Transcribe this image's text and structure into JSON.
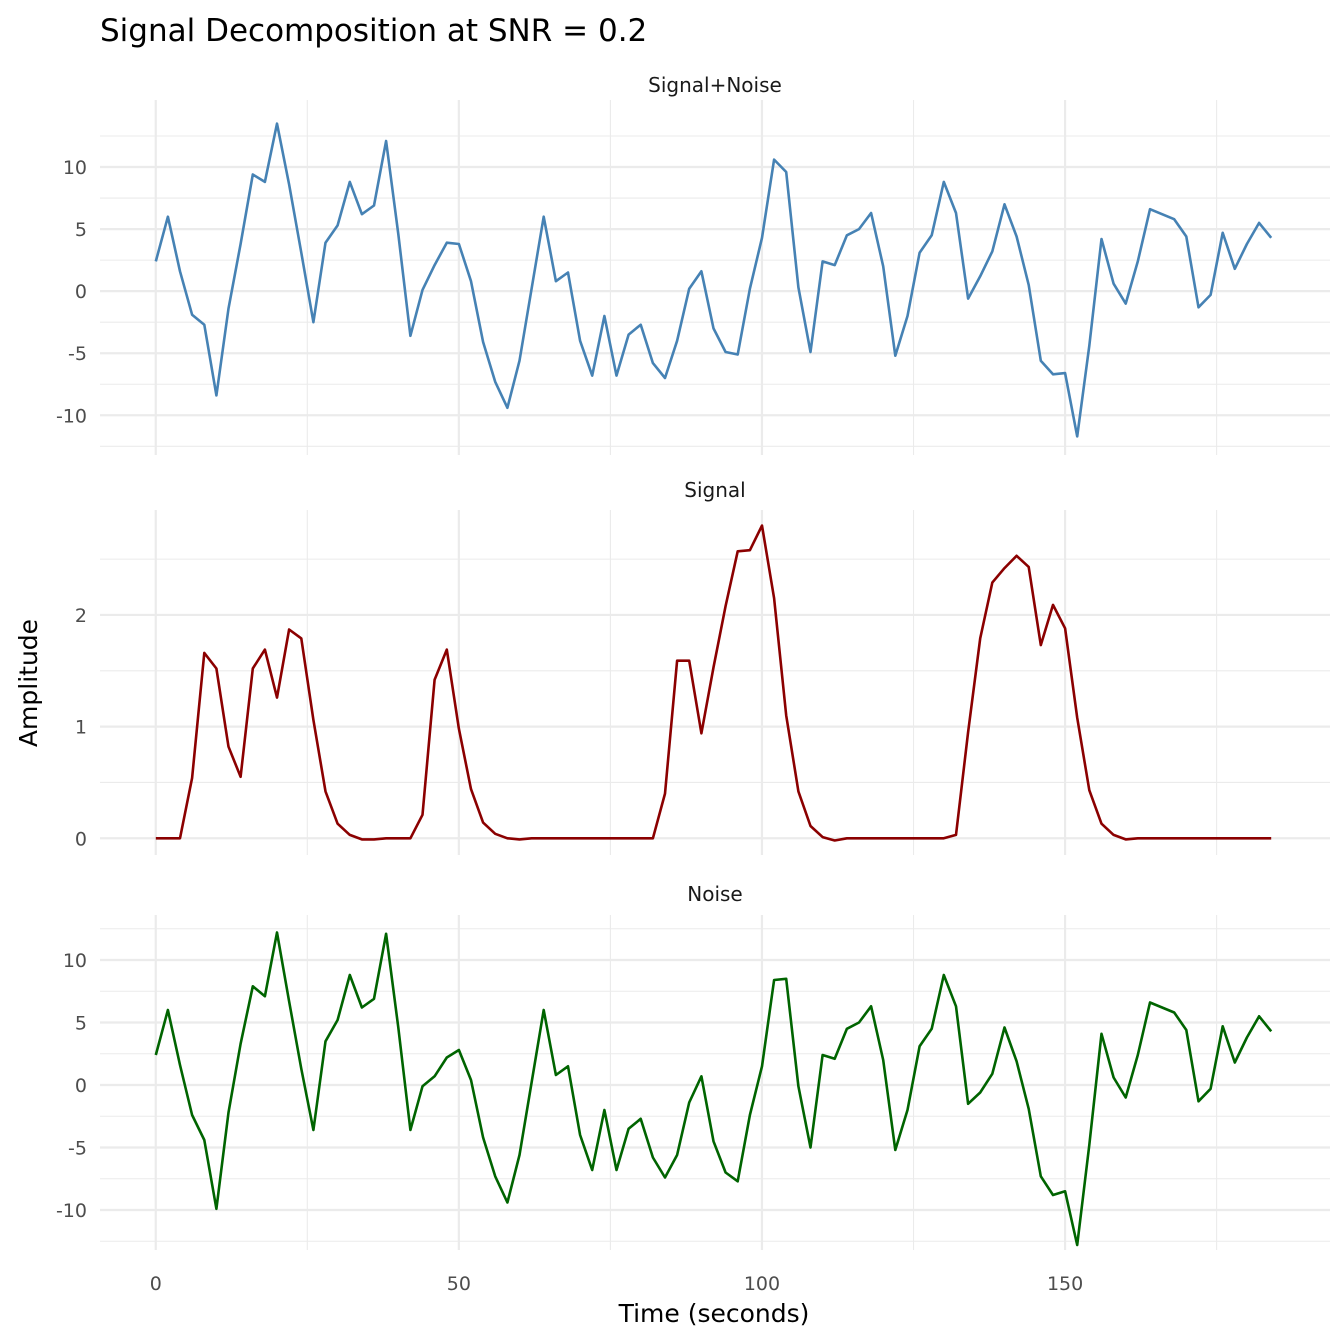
{
  "chart_data": {
    "type": "line",
    "title": "Signal Decomposition at SNR = 0.2",
    "xlabel": "Time (seconds)",
    "ylabel": "Amplitude",
    "xlim": [
      -9.2,
      193.7
    ],
    "x_ticks": [
      0,
      50,
      100,
      150
    ],
    "x_tick_labels": [
      "0",
      "50",
      "100",
      "150"
    ],
    "grid": true,
    "x": [
      0,
      2,
      4,
      6,
      8,
      10,
      12,
      14,
      16,
      18,
      20,
      22,
      24,
      26,
      28,
      30,
      32,
      34,
      36,
      38,
      40,
      42,
      44,
      46,
      48,
      50,
      52,
      54,
      56,
      58,
      60,
      62,
      64,
      66,
      68,
      70,
      72,
      74,
      76,
      78,
      80,
      82,
      84,
      86,
      88,
      90,
      92,
      94,
      96,
      98,
      100,
      102,
      104,
      106,
      108,
      110,
      112,
      114,
      116,
      118,
      120,
      122,
      124,
      126,
      128,
      130,
      132,
      134,
      136,
      138,
      140,
      142,
      144,
      146,
      148,
      150,
      152,
      154,
      156,
      158,
      160,
      162,
      164,
      166,
      168,
      170,
      172,
      174,
      176,
      178,
      180,
      182,
      184
    ],
    "panels": [
      {
        "name": "Signal+Noise",
        "color": "#4682b4",
        "ylim": [
          -13.2,
          15.4
        ],
        "y_ticks": [
          -10,
          -5,
          0,
          5,
          10
        ],
        "y_tick_labels": [
          "-10",
          "-5",
          "0",
          "5",
          "10"
        ],
        "minor": [
          -12.5,
          -7.5,
          -2.5,
          2.5,
          7.5,
          12.5
        ],
        "values": [
          2.4,
          6.0,
          1.6,
          -1.9,
          -2.7,
          -8.4,
          -1.4,
          3.8,
          9.4,
          8.8,
          13.5,
          8.6,
          3.1,
          -2.5,
          3.9,
          5.3,
          8.8,
          6.2,
          6.9,
          12.1,
          4.6,
          -3.6,
          0.1,
          2.1,
          3.9,
          3.8,
          0.8,
          -4.1,
          -7.3,
          -9.4,
          -5.6,
          0.2,
          6.0,
          0.8,
          1.5,
          -4.0,
          -6.8,
          -2.0,
          -6.8,
          -3.5,
          -2.7,
          -5.8,
          -7.0,
          -4.0,
          0.2,
          1.6,
          -3.0,
          -4.9,
          -5.1,
          0.2,
          4.3,
          10.6,
          9.6,
          0.3,
          -4.9,
          2.4,
          2.1,
          4.5,
          5.0,
          6.3,
          2.0,
          -5.2,
          -2.0,
          3.1,
          4.5,
          8.8,
          6.3,
          -0.6,
          1.2,
          3.2,
          7.0,
          4.4,
          0.5,
          -5.6,
          -6.7,
          -6.6,
          -11.7,
          -4.4,
          4.2,
          0.6,
          -1.0,
          2.4,
          6.6,
          6.2,
          5.8,
          4.4,
          -1.3,
          -0.3,
          4.7,
          1.8,
          3.8,
          5.5,
          4.3
        ]
      },
      {
        "name": "Signal",
        "color": "#8b0000",
        "ylim": [
          -0.15,
          2.94
        ],
        "y_ticks": [
          0,
          1,
          2
        ],
        "y_tick_labels": [
          "0",
          "1",
          "2"
        ],
        "minor": [
          0.5,
          1.5,
          2.5
        ],
        "values": [
          0,
          0,
          0,
          0.54,
          1.66,
          1.52,
          0.82,
          0.55,
          1.52,
          1.69,
          1.26,
          1.87,
          1.79,
          1.06,
          0.42,
          0.13,
          0.03,
          -0.01,
          -0.01,
          0,
          0,
          0,
          0.21,
          1.42,
          1.69,
          0.98,
          0.44,
          0.14,
          0.04,
          0,
          -0.01,
          0,
          0,
          0,
          0,
          0,
          0,
          0,
          0,
          0,
          0,
          0,
          0.4,
          1.59,
          1.59,
          0.94,
          1.53,
          2.08,
          2.57,
          2.58,
          2.8,
          2.15,
          1.1,
          0.42,
          0.11,
          0.01,
          -0.02,
          0,
          0,
          0,
          0,
          0,
          0,
          0,
          0,
          0,
          0.03,
          0.95,
          1.79,
          2.29,
          2.42,
          2.53,
          2.43,
          1.73,
          2.09,
          1.88,
          1.08,
          0.43,
          0.13,
          0.03,
          -0.01,
          0,
          0,
          0,
          0,
          0,
          0,
          0,
          0,
          0,
          0,
          0,
          0
        ]
      },
      {
        "name": "Noise",
        "color": "#006400",
        "ylim": [
          -13.2,
          13.6
        ],
        "y_ticks": [
          -10,
          -5,
          0,
          5,
          10
        ],
        "y_tick_labels": [
          "-10",
          "-5",
          "0",
          "5",
          "10"
        ],
        "minor": [
          -12.5,
          -7.5,
          -2.5,
          2.5,
          7.5,
          12.5
        ],
        "values": [
          2.4,
          6.0,
          1.6,
          -2.4,
          -4.4,
          -9.9,
          -2.2,
          3.3,
          7.9,
          7.1,
          12.2,
          6.7,
          1.3,
          -3.6,
          3.5,
          5.2,
          8.8,
          6.2,
          6.9,
          12.1,
          4.6,
          -3.6,
          -0.1,
          0.7,
          2.2,
          2.8,
          0.4,
          -4.2,
          -7.3,
          -9.4,
          -5.6,
          0.2,
          6.0,
          0.8,
          1.5,
          -4.0,
          -6.8,
          -2.0,
          -6.8,
          -3.5,
          -2.7,
          -5.8,
          -7.4,
          -5.6,
          -1.4,
          0.7,
          -4.5,
          -7.0,
          -7.7,
          -2.4,
          1.5,
          8.4,
          8.5,
          -0.1,
          -5.0,
          2.4,
          2.1,
          4.5,
          5.0,
          6.3,
          2.0,
          -5.2,
          -2.0,
          3.1,
          4.5,
          8.8,
          6.3,
          -1.5,
          -0.6,
          0.9,
          4.6,
          1.9,
          -1.9,
          -7.3,
          -8.8,
          -8.5,
          -12.8,
          -4.8,
          4.1,
          0.6,
          -1.0,
          2.4,
          6.6,
          6.2,
          5.8,
          4.4,
          -1.3,
          -0.3,
          4.7,
          1.8,
          3.8,
          5.5,
          4.3
        ]
      }
    ]
  }
}
